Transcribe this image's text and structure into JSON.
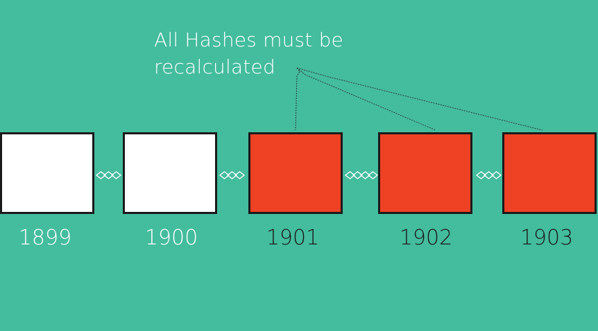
{
  "annotation": {
    "line1": "All Hashes must be",
    "line2": "recalculated"
  },
  "colors": {
    "background": "#44bc9e",
    "valid_block": "#ffffff",
    "invalid_block": "#ef4124",
    "border": "#1a1a1a",
    "year_light": "#ffffff",
    "year_dark": "#1a1a1a"
  },
  "blocks": [
    {
      "year": "1899",
      "state": "valid"
    },
    {
      "year": "1900",
      "state": "valid"
    },
    {
      "year": "1901",
      "state": "invalid"
    },
    {
      "year": "1902",
      "state": "invalid"
    },
    {
      "year": "1903",
      "state": "invalid"
    }
  ]
}
